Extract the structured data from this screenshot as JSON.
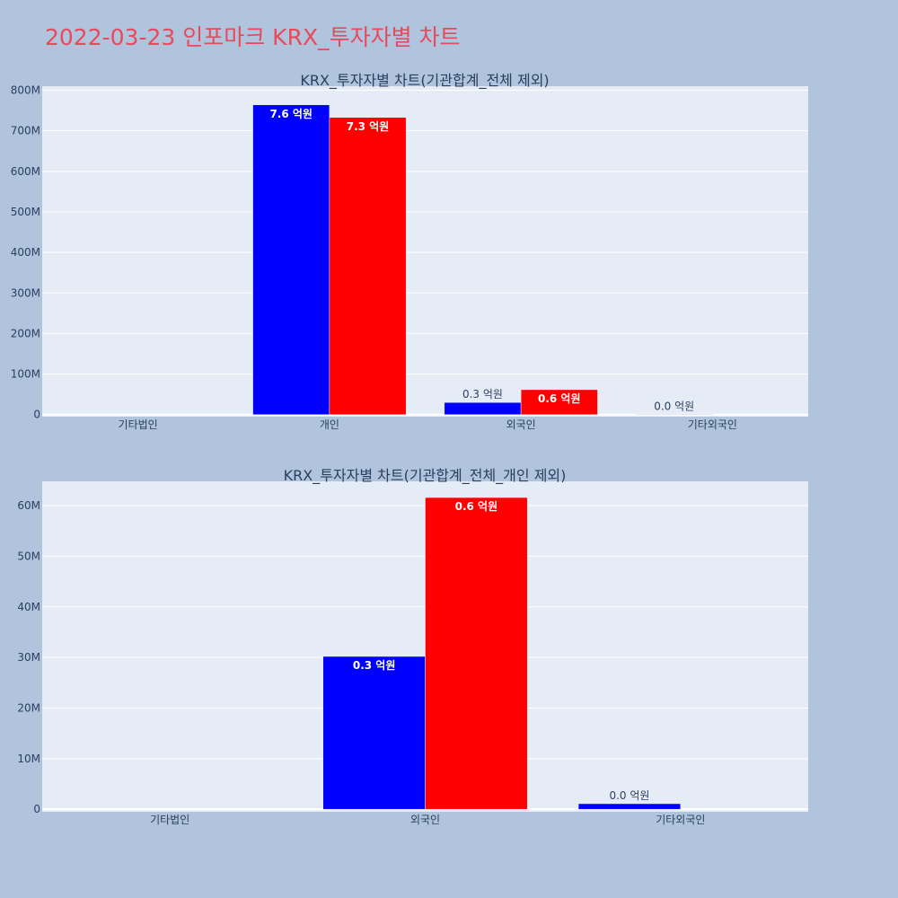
{
  "page": {
    "title": "2022-03-23 인포마크 KRX_투자자별 차트"
  },
  "colors": {
    "background": "#b0c4de",
    "plot_bg": "#e5ecf6",
    "title": "#e8495b",
    "series_a": "#0000ff",
    "series_b": "#ff0000",
    "text": "#2a3f5f"
  },
  "chart_data": [
    {
      "type": "bar",
      "title": "KRX_투자자별 차트(기관합계_전체 제외)",
      "categories": [
        "기타법인",
        "개인",
        "외국인",
        "기타외국인"
      ],
      "series": [
        {
          "color": "#0000ff",
          "values": [
            0,
            764000000,
            30000000,
            1000000
          ],
          "labels": [
            "",
            "7.6 억원",
            "0.3 억원",
            "0.0 억원"
          ]
        },
        {
          "color": "#ff0000",
          "values": [
            0,
            733000000,
            61600000,
            0
          ],
          "labels": [
            "",
            "7.3 억원",
            "0.6 억원",
            ""
          ]
        }
      ],
      "yticks": [
        0,
        100000000,
        200000000,
        300000000,
        400000000,
        500000000,
        600000000,
        700000000,
        800000000
      ],
      "ytick_labels": [
        "0",
        "100M",
        "200M",
        "300M",
        "400M",
        "500M",
        "600M",
        "700M",
        "800M"
      ],
      "ylim": [
        -5000000,
        810000000
      ],
      "grid": true,
      "legend": "none"
    },
    {
      "type": "bar",
      "title": "KRX_투자자별 차트(기관합계_전체_개인 제외)",
      "categories": [
        "기타법인",
        "외국인",
        "기타외국인"
      ],
      "series": [
        {
          "color": "#0000ff",
          "values": [
            0,
            30200000,
            1100000
          ],
          "labels": [
            "",
            "0.3 억원",
            "0.0 억원"
          ]
        },
        {
          "color": "#ff0000",
          "values": [
            0,
            61600000,
            0
          ],
          "labels": [
            "",
            "0.6 억원",
            ""
          ]
        }
      ],
      "yticks": [
        0,
        10000000,
        20000000,
        30000000,
        40000000,
        50000000,
        60000000
      ],
      "ytick_labels": [
        "0",
        "10M",
        "20M",
        "30M",
        "40M",
        "50M",
        "60M"
      ],
      "ylim": [
        -500000,
        64800000
      ],
      "grid": true,
      "legend": "none"
    }
  ]
}
